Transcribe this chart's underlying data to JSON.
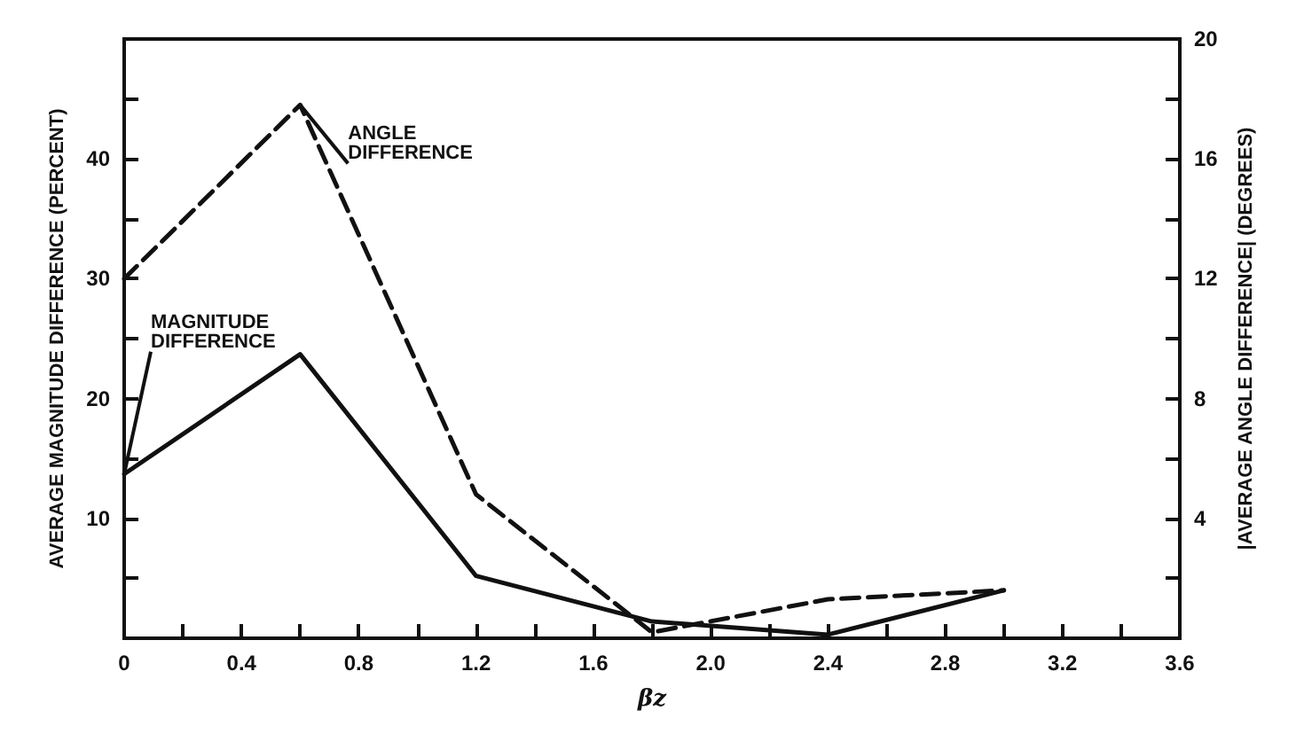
{
  "chart_data": {
    "type": "line",
    "xlabel": "βz",
    "ylabel": "AVERAGE MAGNITUDE DIFFERENCE (PERCENT)",
    "y2label": "|AVERAGE ANGLE DIFFERENCE| (DEGREES)",
    "x": [
      0,
      0.6,
      1.2,
      1.8,
      2.4,
      3.0
    ],
    "series": [
      {
        "name": "ANGLE DIFFERENCE",
        "color": "#111111",
        "axis": "y2",
        "line_style": "dashed",
        "values": [
          12.0,
          17.8,
          4.8,
          0.2,
          1.3,
          1.6
        ]
      },
      {
        "name": "MAGNITUDE DIFFERENCE",
        "color": "#111111",
        "line_style": "solid",
        "values": [
          13.7,
          23.7,
          5.2,
          1.4,
          0.3,
          4.0
        ]
      }
    ],
    "xlim": [
      0,
      3.6
    ],
    "xticks": [
      0,
      {
        "value": 0.2,
        "label": null
      },
      0.4,
      {
        "value": 0.6,
        "label": null
      },
      0.8,
      {
        "value": 1.0,
        "label": null
      },
      1.2,
      {
        "value": 1.4,
        "label": null
      },
      1.6,
      {
        "value": 1.8,
        "label": null
      },
      {
        "value": 2.0,
        "label": "2.0"
      },
      {
        "value": 2.2,
        "label": null
      },
      2.4,
      {
        "value": 2.6,
        "label": null
      },
      2.8,
      {
        "value": 3.0,
        "label": null
      },
      3.2,
      {
        "value": 3.4,
        "label": null
      },
      3.6
    ],
    "ylim": [
      0,
      50
    ],
    "yticks": [
      {
        "value": 5,
        "label": null
      },
      10,
      {
        "value": 15,
        "label": null
      },
      20,
      {
        "value": 25,
        "label": null
      },
      30,
      {
        "value": 35,
        "label": null
      },
      40,
      {
        "value": 45,
        "label": null
      }
    ],
    "y2lim": [
      0,
      20
    ],
    "y2ticks": [
      {
        "value": 2,
        "label": null
      },
      4,
      {
        "value": 6,
        "label": null
      },
      8,
      {
        "value": 10,
        "label": null
      },
      12,
      {
        "value": 14,
        "label": null
      },
      16,
      {
        "value": 18,
        "label": null
      },
      20
    ],
    "grid": false,
    "legend": false,
    "marker": "none"
  }
}
